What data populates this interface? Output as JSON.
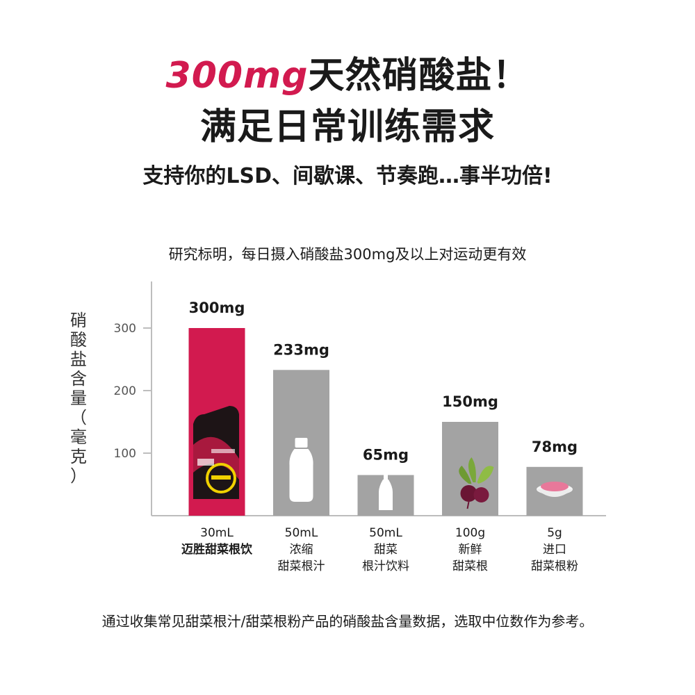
{
  "header": {
    "accent": "300mg",
    "line1_rest": "天然硝酸盐！",
    "line2": "满足日常训练需求",
    "subtitle": "支持你的LSD、间歇课、节奏跑…事半功倍!"
  },
  "chart_note": "研究标明，每日摄入硝酸盐300mg及以上对运动更有效",
  "footer": "通过收集常见甜菜根汁/甜菜根粉产品的硝酸盐含量数据，选取中位数作为参考。",
  "colors": {
    "accent": "#d21a4f",
    "bar_gray": "#a3a3a3",
    "axis": "#bdbdbd"
  },
  "chart_data": {
    "type": "bar",
    "ylabel": "硝酸盐含量（毫克）",
    "ylim": [
      0,
      380
    ],
    "yticks": [
      100,
      200,
      300
    ],
    "grid": false,
    "categories": [
      {
        "line1": "30mL",
        "line2": "迈胜甜菜根饮",
        "line3": "",
        "bold": true,
        "icon": "beet-gel-pouch-icon"
      },
      {
        "line1": "50mL",
        "line2": "浓缩",
        "line3": "甜菜根汁",
        "bold": false,
        "icon": "juice-bottle-icon"
      },
      {
        "line1": "50mL",
        "line2": "甜菜",
        "line3": "根汁饮料",
        "bold": false,
        "icon": "drink-bottle-icon"
      },
      {
        "line1": "100g",
        "line2": "新鲜",
        "line3": "甜菜根",
        "bold": false,
        "icon": "beetroot-icon"
      },
      {
        "line1": "5g",
        "line2": "进口",
        "line3": "甜菜根粉",
        "bold": false,
        "icon": "powder-bowl-icon"
      }
    ],
    "values": [
      300,
      233,
      65,
      150,
      78
    ],
    "data_labels": [
      "300mg",
      "233mg",
      "65mg",
      "150mg",
      "78mg"
    ],
    "highlight_index": 0
  }
}
